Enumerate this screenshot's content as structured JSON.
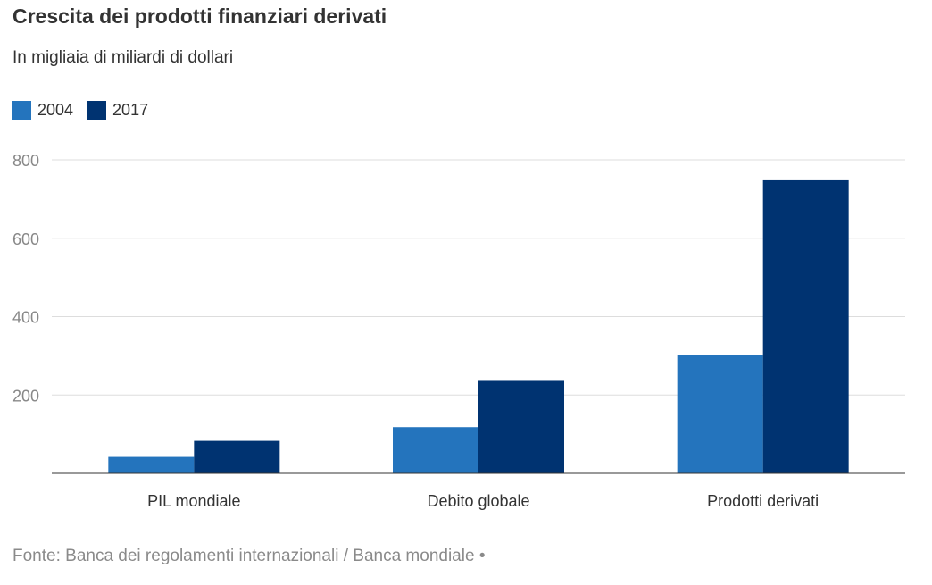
{
  "title": "Crescita dei prodotti finanziari derivati",
  "subtitle": "In migliaia di miliardi di dollari",
  "source": "Fonte: Banca dei regolamenti internazionali / Banca mondiale •",
  "colors": {
    "series_2004": "#2474bd",
    "series_2017": "#003371",
    "grid": "#dddddd",
    "axis": "#333333"
  },
  "chart_data": {
    "type": "bar",
    "categories": [
      "PIL mondiale",
      "Debito globale",
      "Prodotti derivati"
    ],
    "series": [
      {
        "name": "2004",
        "values": [
          42,
          118,
          302
        ]
      },
      {
        "name": "2017",
        "values": [
          83,
          236,
          750
        ]
      }
    ],
    "ylim": [
      0,
      800
    ],
    "yticks": [
      200,
      400,
      600,
      800
    ],
    "ytick_labels": [
      "200",
      "400",
      "600",
      "800"
    ],
    "grid": true,
    "legend_position": "top-left"
  }
}
